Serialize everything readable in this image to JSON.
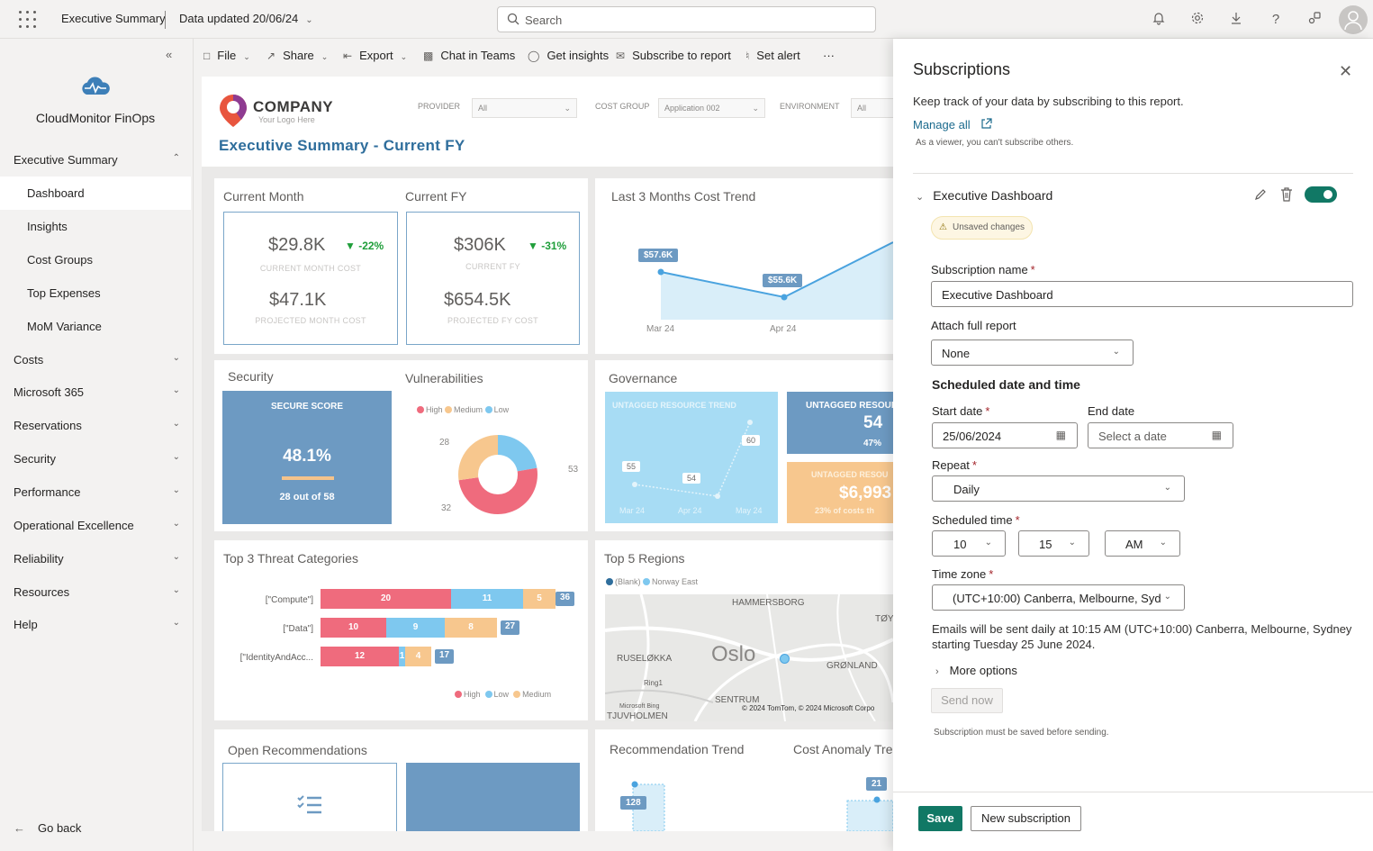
{
  "topbar": {
    "title": "Executive Summary",
    "data_updated": "Data updated 20/06/24",
    "search_placeholder": "Search",
    "icons": [
      "bell-icon",
      "gear-icon",
      "download-icon",
      "help-icon",
      "share-icon",
      "avatar"
    ]
  },
  "leftnav": {
    "app_name": "CloudMonitor FinOps",
    "items": [
      {
        "label": "Executive Summary",
        "expanded": true
      },
      {
        "label": "Dashboard",
        "sub": true,
        "active": true
      },
      {
        "label": "Insights",
        "sub": true
      },
      {
        "label": "Cost Groups",
        "sub": true
      },
      {
        "label": "Top Expenses",
        "sub": true
      },
      {
        "label": "MoM Variance",
        "sub": true
      },
      {
        "label": "Costs"
      },
      {
        "label": "Microsoft 365"
      },
      {
        "label": "Reservations"
      },
      {
        "label": "Security"
      },
      {
        "label": "Performance"
      },
      {
        "label": "Operational Excellence"
      },
      {
        "label": "Reliability"
      },
      {
        "label": "Resources"
      },
      {
        "label": "Help"
      }
    ],
    "go_back": "Go back"
  },
  "actionbar": {
    "file": "File",
    "share": "Share",
    "export": "Export",
    "chat": "Chat in Teams",
    "insights": "Get insights",
    "subscribe": "Subscribe to report",
    "alert": "Set alert",
    "more": "···"
  },
  "report": {
    "company": "COMPANY",
    "logo_sub": "Your Logo Here",
    "title": "Executive Summary - Current FY",
    "filters": {
      "provider_label": "PROVIDER",
      "provider_value": "All",
      "cost_group_label": "COST GROUP",
      "cost_group_value": "Application 002",
      "environment_label": "ENVIRONMENT",
      "environment_value": "All"
    },
    "current_month": {
      "title": "Current Month",
      "cost": "$29.8K",
      "delta": "▼ -22%",
      "cost_caption": "CURRENT MONTH COST",
      "projected": "$47.1K",
      "projected_caption": "PROJECTED MONTH COST"
    },
    "current_fy": {
      "title": "Current FY",
      "cost": "$306K",
      "delta": "▼ -31%",
      "cost_caption": "CURRENT FY",
      "projected": "$654.5K",
      "projected_caption": "PROJECTED FY COST"
    },
    "trend": {
      "title": "Last 3 Months Cost Trend",
      "labels": [
        "$57.6K",
        "$55.6K"
      ],
      "months": [
        "Mar 24",
        "Apr 24"
      ]
    },
    "security": {
      "title": "Security",
      "tile_title": "SECURE SCORE",
      "score": "48.1%",
      "detail": "28 out of 58"
    },
    "vulnerabilities": {
      "title": "Vulnerabilities",
      "legend": [
        "High",
        "Medium",
        "Low"
      ],
      "labels": [
        "28",
        "53",
        "32"
      ]
    },
    "governance": {
      "title": "Governance",
      "trend_title": "UNTAGGED RESOURCE TREND",
      "trend_values": [
        "55",
        "54",
        "60"
      ],
      "trend_months": [
        "Mar 24",
        "Apr 24",
        "May 24"
      ],
      "untagged_title": "UNTAGGED RESOUR",
      "untagged_count": "54",
      "untagged_pct": "47%",
      "cost_title": "UNTAGGED RESOU",
      "cost_value": "$6,993",
      "cost_pct": "23% of costs th"
    },
    "threats": {
      "title": "Top 3 Threat Categories",
      "rows": [
        {
          "label": "[\"Compute\"]",
          "high": "20",
          "low": "11",
          "medium": "5",
          "total": "36"
        },
        {
          "label": "[\"Data\"]",
          "high": "10",
          "low": "9",
          "medium": "8",
          "total": "27"
        },
        {
          "label": "[\"IdentityAndAcc...",
          "high": "12",
          "low": "1",
          "medium": "4",
          "total": "17"
        }
      ],
      "legend": [
        "High",
        "Low",
        "Medium"
      ]
    },
    "regions": {
      "title": "Top 5 Regions",
      "legend": [
        "(Blank)",
        "Norway East"
      ],
      "map_labels": [
        "HAMMERSBORG",
        "Oslo",
        "RUSELØKKA",
        "GRØNLAND",
        "SENTRUM",
        "TJUVHOLMEN",
        "Ring1",
        "TØY"
      ],
      "attribution": "© 2024 TomTom, © 2024 Microsoft Corpo",
      "bing": "Microsoft Bing"
    },
    "open_recs": {
      "title": "Open Recommendations"
    },
    "rec_trend": {
      "title": "Recommendation Trend",
      "value": "128"
    },
    "anomaly": {
      "title": "Cost Anomaly Tre",
      "value": "21"
    }
  },
  "panel": {
    "title": "Subscriptions",
    "desc": "Keep track of your data by subscribing to this report.",
    "manage_all": "Manage all",
    "note": "As a viewer, you can't subscribe others.",
    "section": "Executive Dashboard",
    "unsaved": "Unsaved changes",
    "name_label": "Subscription name",
    "name_value": "Executive Dashboard",
    "attach_label": "Attach full report",
    "attach_value": "None",
    "schedule_head": "Scheduled date and time",
    "start_label": "Start date",
    "start_value": "25/06/2024",
    "end_label": "End date",
    "end_placeholder": "Select a date",
    "repeat_label": "Repeat",
    "repeat_value": "Daily",
    "time_label": "Scheduled time",
    "hour": "10",
    "minute": "15",
    "ampm": "AM",
    "tz_label": "Time zone",
    "tz_value": "(UTC+10:00) Canberra, Melbourne, Syd",
    "info_line1": "Emails will be sent daily at 10:15 AM (UTC+10:00) Canberra, Melbourne, Sydney",
    "info_line2": "starting Tuesday 25 June 2024.",
    "more_options": "More options",
    "send_now": "Send now",
    "send_note": "Subscription must be saved before sending.",
    "save": "Save",
    "new_sub": "New subscription"
  }
}
